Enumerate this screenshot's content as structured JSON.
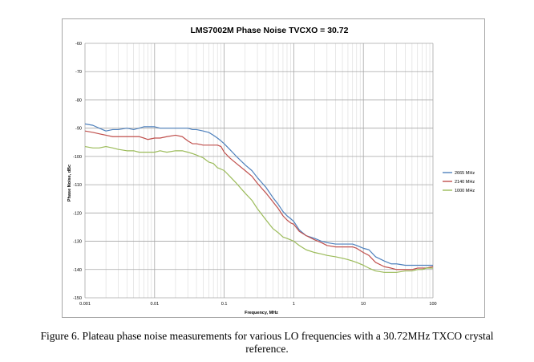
{
  "chart_data": {
    "type": "line",
    "title": "LMS7002M Phase Noise TVCXO = 30.72",
    "xlabel": "Frequency, MHz",
    "ylabel": "Phase Noise, dBc",
    "x_scale": "log",
    "xlim": [
      0.001,
      100
    ],
    "ylim": [
      -150,
      -60
    ],
    "x_ticks": [
      0.001,
      0.01,
      0.1,
      1,
      10,
      100
    ],
    "x_tick_labels": [
      "0.001",
      "0.01",
      "0.1",
      "1",
      "10",
      "100"
    ],
    "y_ticks": [
      -60,
      -70,
      -80,
      -90,
      -100,
      -110,
      -120,
      -130,
      -140,
      -150
    ],
    "y_tick_labels": [
      "-60",
      "-70",
      "-80",
      "-90",
      "-100",
      "-110",
      "-120",
      "-130",
      "-140",
      "-150"
    ],
    "grid": true,
    "legend_position": "right",
    "series": [
      {
        "name": "2665 MHz",
        "color": "#4f81bd",
        "x": [
          0.001,
          0.0013,
          0.0016,
          0.002,
          0.0025,
          0.003,
          0.004,
          0.005,
          0.006,
          0.007,
          0.008,
          0.01,
          0.012,
          0.015,
          0.02,
          0.025,
          0.03,
          0.035,
          0.04,
          0.05,
          0.06,
          0.07,
          0.08,
          0.09,
          0.1,
          0.12,
          0.15,
          0.2,
          0.25,
          0.3,
          0.4,
          0.5,
          0.6,
          0.7,
          0.8,
          0.9,
          1,
          1.2,
          1.5,
          2,
          2.5,
          3,
          4,
          5,
          6,
          7,
          8,
          10,
          12,
          15,
          20,
          25,
          30,
          40,
          50,
          60,
          70,
          80,
          100
        ],
        "y": [
          -88.5,
          -89,
          -90,
          -91,
          -90.5,
          -90.5,
          -90,
          -90.5,
          -90,
          -89.5,
          -89.5,
          -89.5,
          -90,
          -90,
          -90,
          -90,
          -90,
          -90.5,
          -90.5,
          -91,
          -91.5,
          -92.5,
          -93.5,
          -94.5,
          -95.5,
          -97.5,
          -100,
          -103,
          -105,
          -107.5,
          -111,
          -114.5,
          -117,
          -119.5,
          -121,
          -122,
          -123,
          -126,
          -128,
          -129,
          -130,
          -130.5,
          -131,
          -131,
          -131,
          -131,
          -131.5,
          -132.5,
          -133,
          -135.5,
          -137,
          -138,
          -138,
          -138.5,
          -138.5,
          -138.5,
          -138.5,
          -138.5,
          -138.5
        ]
      },
      {
        "name": "2140 MHz",
        "color": "#c0504d",
        "x": [
          0.001,
          0.0013,
          0.0016,
          0.002,
          0.0025,
          0.003,
          0.004,
          0.005,
          0.006,
          0.007,
          0.008,
          0.01,
          0.012,
          0.015,
          0.02,
          0.025,
          0.03,
          0.035,
          0.04,
          0.05,
          0.06,
          0.07,
          0.08,
          0.09,
          0.1,
          0.12,
          0.15,
          0.2,
          0.25,
          0.3,
          0.4,
          0.5,
          0.6,
          0.7,
          0.8,
          0.9,
          1,
          1.2,
          1.5,
          2,
          2.5,
          3,
          4,
          5,
          6,
          7,
          8,
          10,
          12,
          15,
          20,
          25,
          30,
          40,
          50,
          60,
          70,
          80,
          100
        ],
        "y": [
          -91,
          -91.5,
          -92,
          -92.5,
          -93,
          -93,
          -93,
          -93,
          -93,
          -93.5,
          -94,
          -93.5,
          -93.5,
          -93,
          -92.5,
          -93,
          -94.5,
          -95.5,
          -95.5,
          -96,
          -96,
          -96,
          -96,
          -96.5,
          -98.5,
          -100.5,
          -102.5,
          -105,
          -107,
          -109.5,
          -113,
          -116,
          -118.5,
          -121,
          -122.5,
          -123.5,
          -124,
          -126.5,
          -128,
          -129.5,
          -130.5,
          -131.5,
          -132,
          -132,
          -132,
          -132,
          -132.5,
          -134,
          -135,
          -137.5,
          -139,
          -139.5,
          -140,
          -140,
          -140,
          -139.5,
          -139.5,
          -139.5,
          -139
        ]
      },
      {
        "name": "1000 MHz",
        "color": "#9bbb59",
        "x": [
          0.001,
          0.0013,
          0.0016,
          0.002,
          0.0025,
          0.003,
          0.004,
          0.005,
          0.006,
          0.007,
          0.008,
          0.01,
          0.012,
          0.015,
          0.02,
          0.025,
          0.03,
          0.035,
          0.04,
          0.05,
          0.06,
          0.07,
          0.08,
          0.09,
          0.1,
          0.12,
          0.15,
          0.2,
          0.25,
          0.3,
          0.4,
          0.5,
          0.6,
          0.7,
          0.8,
          0.9,
          1,
          1.2,
          1.5,
          2,
          2.5,
          3,
          4,
          5,
          6,
          7,
          8,
          10,
          12,
          15,
          20,
          25,
          30,
          40,
          50,
          60,
          70,
          80,
          100
        ],
        "y": [
          -96.5,
          -97,
          -97,
          -96.5,
          -97,
          -97.5,
          -98,
          -98,
          -98.5,
          -98.5,
          -98.5,
          -98.5,
          -98,
          -98.5,
          -98,
          -98,
          -98.5,
          -99,
          -99.5,
          -100.5,
          -102,
          -102.5,
          -104,
          -104.5,
          -105,
          -107,
          -109.5,
          -113,
          -115.5,
          -118.5,
          -122.5,
          -125.5,
          -127,
          -128.5,
          -129,
          -129.5,
          -130,
          -131.5,
          -133,
          -134,
          -134.5,
          -135,
          -135.5,
          -136,
          -136.5,
          -137,
          -137.5,
          -138.5,
          -139.5,
          -140.5,
          -141,
          -141,
          -141,
          -140.5,
          -140.5,
          -140,
          -140,
          -139.5,
          -139.5
        ]
      }
    ]
  },
  "caption": {
    "line1": "Figure 6. Plateau phase noise measurements for various LO frequencies with a 30.72MHz TXCO crystal",
    "line2": "reference."
  }
}
